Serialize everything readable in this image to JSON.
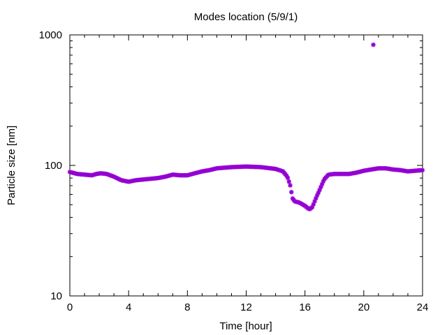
{
  "chart_data": {
    "type": "scatter",
    "title": "Modes location (5/9/1)",
    "xlabel": "Time [hour]",
    "ylabel": "Particle size [nm]",
    "xlim": [
      0,
      24
    ],
    "ylim": [
      10,
      1000
    ],
    "yscale": "log",
    "grid": false,
    "legend": "none",
    "marker_color": "#9400d3",
    "x_ticks": [
      0,
      4,
      8,
      12,
      16,
      20,
      24
    ],
    "x_tick_labels": [
      "0",
      "4",
      "8",
      "12",
      "16",
      "20",
      "24"
    ],
    "y_ticks": [
      10,
      100,
      1000
    ],
    "y_tick_labels": [
      "10",
      "100",
      "1000"
    ],
    "keypoints": [
      [
        0,
        89
      ],
      [
        0.5,
        86
      ],
      [
        1.0,
        85
      ],
      [
        1.5,
        84
      ],
      [
        1.8,
        86
      ],
      [
        2.1,
        87
      ],
      [
        2.5,
        86
      ],
      [
        3.0,
        82
      ],
      [
        3.5,
        77
      ],
      [
        4.0,
        75
      ],
      [
        4.5,
        77
      ],
      [
        5.0,
        78
      ],
      [
        6.0,
        80
      ],
      [
        6.5,
        82
      ],
      [
        7.0,
        85
      ],
      [
        7.5,
        84
      ],
      [
        8.0,
        84
      ],
      [
        8.5,
        87
      ],
      [
        9.0,
        90
      ],
      [
        9.5,
        92
      ],
      [
        10.0,
        95
      ],
      [
        11.0,
        97
      ],
      [
        12.0,
        98
      ],
      [
        13.0,
        97
      ],
      [
        14.0,
        94
      ],
      [
        14.5,
        90
      ],
      [
        14.8,
        82
      ],
      [
        15.0,
        70
      ],
      [
        15.15,
        56
      ],
      [
        15.3,
        53
      ],
      [
        15.6,
        52
      ],
      [
        16.0,
        49
      ],
      [
        16.3,
        46
      ],
      [
        16.5,
        48
      ],
      [
        16.8,
        58
      ],
      [
        17.0,
        65
      ],
      [
        17.3,
        78
      ],
      [
        17.6,
        85
      ],
      [
        18.0,
        86
      ],
      [
        19.0,
        86
      ],
      [
        19.5,
        88
      ],
      [
        20.0,
        91
      ],
      [
        20.5,
        93
      ],
      [
        21.0,
        95
      ],
      [
        21.5,
        95
      ],
      [
        22.0,
        93
      ],
      [
        22.5,
        92
      ],
      [
        23.0,
        90
      ],
      [
        23.5,
        91
      ],
      [
        24.0,
        92
      ]
    ],
    "step": 0.0833,
    "outliers": [
      [
        20.65,
        840
      ]
    ]
  }
}
